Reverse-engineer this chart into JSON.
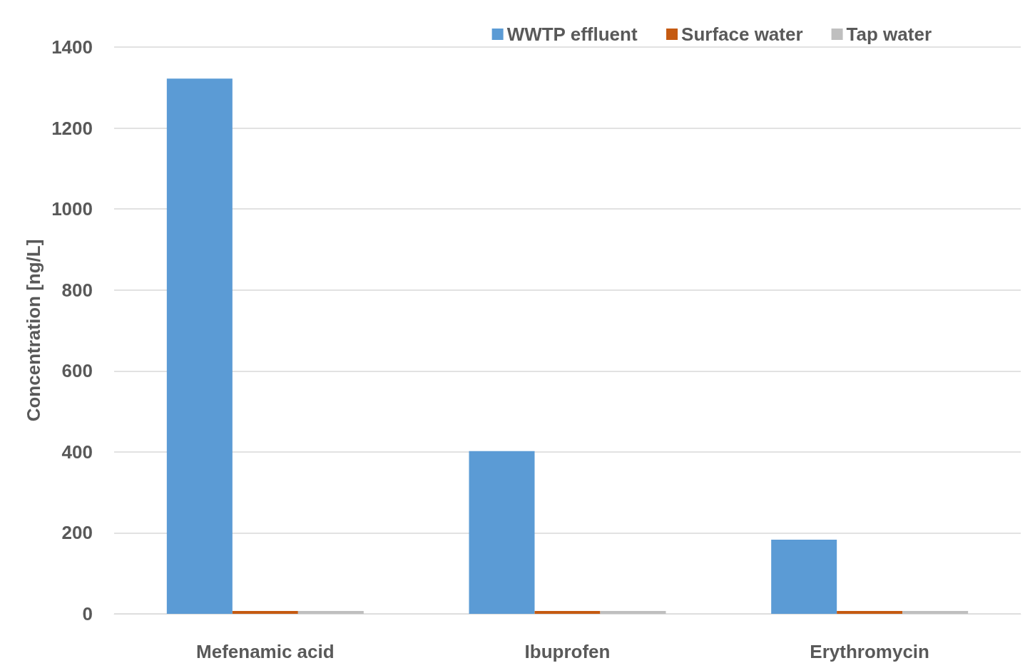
{
  "chart_data": {
    "type": "bar",
    "ylabel": "Concentration [ng/L]",
    "categories": [
      "Mefenamic acid",
      "Ibuprofen",
      "Erythromycin"
    ],
    "series": [
      {
        "name": "WWTP effluent",
        "color": "#5b9bd5",
        "values": [
          1322,
          402,
          183
        ]
      },
      {
        "name": "Surface water",
        "color": "#c55a11",
        "values": [
          0,
          0,
          0
        ]
      },
      {
        "name": "Tap water",
        "color": "#bfbfbf",
        "values": [
          0,
          0,
          0
        ]
      }
    ],
    "ylim": [
      0,
      1400
    ],
    "yticks": [
      0,
      200,
      400,
      600,
      800,
      1000,
      1200,
      1400
    ],
    "grid": "y",
    "legend": "top right"
  }
}
